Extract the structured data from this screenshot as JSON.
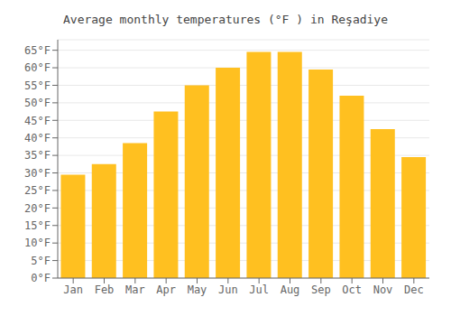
{
  "chart_data": {
    "type": "bar",
    "title": "Average monthly temperatures (°F ) in Reşadiye",
    "categories": [
      "Jan",
      "Feb",
      "Mar",
      "Apr",
      "May",
      "Jun",
      "Jul",
      "Aug",
      "Sep",
      "Oct",
      "Nov",
      "Dec"
    ],
    "values": [
      29.5,
      32.5,
      38.5,
      47.5,
      55.0,
      60.0,
      64.5,
      64.5,
      59.5,
      52.0,
      42.5,
      34.5
    ],
    "color": "#FFC020",
    "ylim": [
      0,
      68
    ],
    "yticks": [
      {
        "value": 0,
        "label": "0°F"
      },
      {
        "value": 5,
        "label": "5°F"
      },
      {
        "value": 10,
        "label": "10°F"
      },
      {
        "value": 15,
        "label": "15°F"
      },
      {
        "value": 20,
        "label": "20°F"
      },
      {
        "value": 25,
        "label": "25°F"
      },
      {
        "value": 30,
        "label": "30°F"
      },
      {
        "value": 35,
        "label": "35°F"
      },
      {
        "value": 40,
        "label": "40°F"
      },
      {
        "value": 45,
        "label": "45°F"
      },
      {
        "value": 50,
        "label": "50°F"
      },
      {
        "value": 55,
        "label": "55°F"
      },
      {
        "value": 60,
        "label": "60°F"
      },
      {
        "value": 65,
        "label": "65°F"
      }
    ],
    "grid": true
  }
}
